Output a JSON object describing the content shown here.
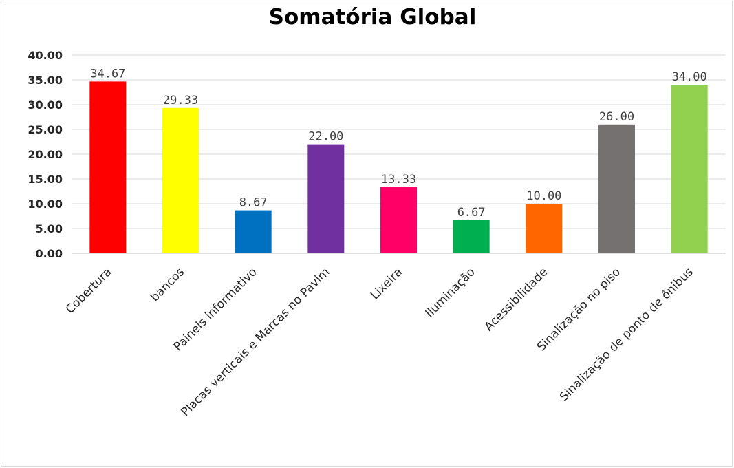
{
  "chart_data": {
    "type": "bar",
    "title": "Somatória Global",
    "xlabel": "",
    "ylabel": "",
    "ylim": [
      0,
      40
    ],
    "yticks": [
      "0.00",
      "5.00",
      "10.00",
      "15.00",
      "20.00",
      "25.00",
      "30.00",
      "35.00",
      "40.00"
    ],
    "grid": true,
    "legend": "none",
    "categories": [
      "Cobertura",
      "bancos",
      "Paineis informativo",
      "Placas verticais e Marcas no Pavim",
      "Lixeira",
      "Iluminação",
      "Acessibilidade",
      "Sinalização no piso",
      "Sinalização de ponto de ônibus"
    ],
    "values": [
      34.67,
      29.33,
      8.67,
      22.0,
      13.33,
      6.67,
      10.0,
      26.0,
      34.0
    ],
    "value_labels": [
      "34.67",
      "29.33",
      "8.67",
      "22.00",
      "13.33",
      "6.67",
      "10.00",
      "26.00",
      "34.00"
    ],
    "colors": [
      "#ff0000",
      "#ffff00",
      "#0070c0",
      "#7030a0",
      "#ff0066",
      "#00b050",
      "#ff6600",
      "#767171",
      "#92d050"
    ]
  }
}
